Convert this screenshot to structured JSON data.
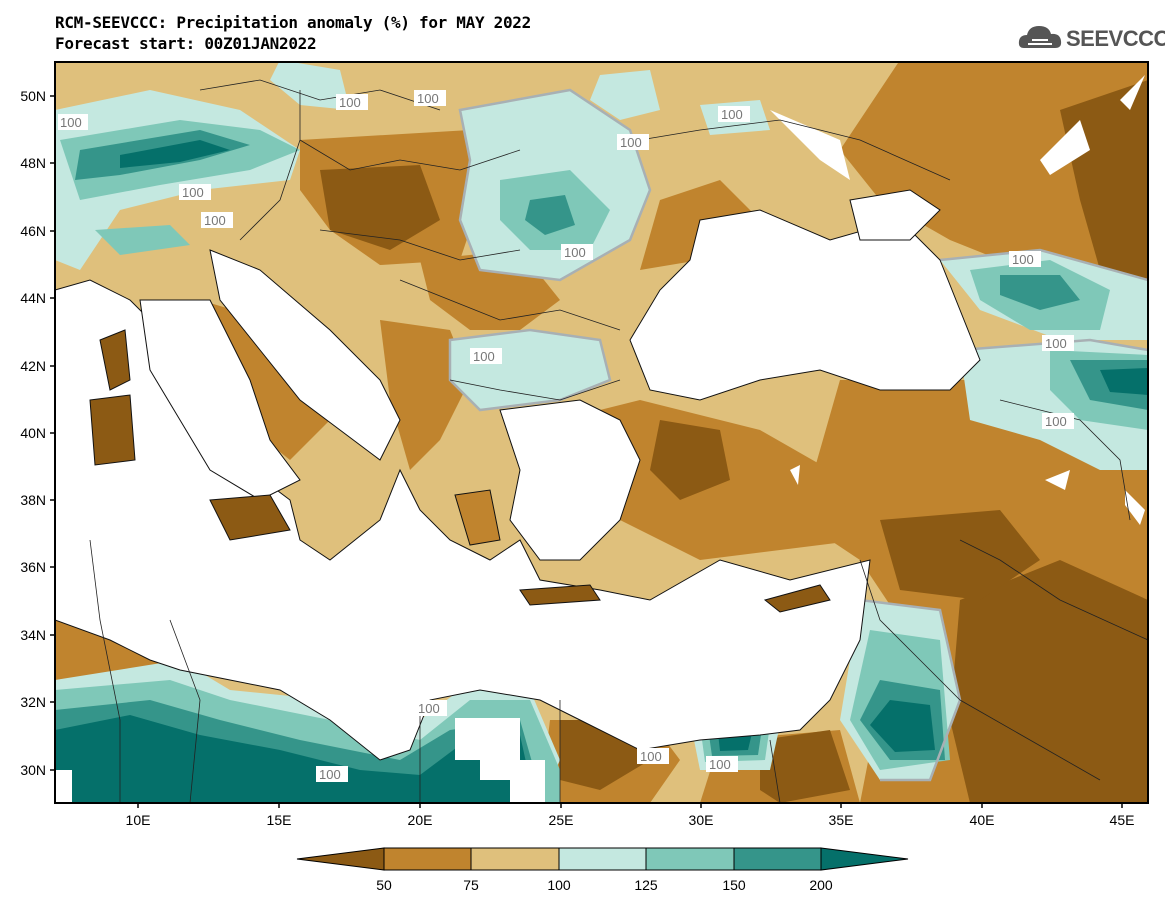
{
  "header": {
    "title_line1": "RCM-SEEVCCC: Precipitation anomaly (%) for MAY 2022",
    "title_line2": "Forecast start: 00Z01JAN2022",
    "logo_text": "SEEVCCC"
  },
  "axes": {
    "lat_labels": [
      "50N",
      "48N",
      "46N",
      "44N",
      "42N",
      "40N",
      "38N",
      "36N",
      "34N",
      "32N",
      "30N"
    ],
    "lon_labels": [
      "10E",
      "15E",
      "20E",
      "25E",
      "30E",
      "35E",
      "40E",
      "45E"
    ]
  },
  "contour_labels": [
    "100",
    "100",
    "100",
    "100",
    "100",
    "100",
    "100",
    "100",
    "100",
    "100",
    "100",
    "100",
    "100",
    "100",
    "100",
    "100"
  ],
  "colorbar": {
    "tick_labels": [
      "50",
      "75",
      "100",
      "125",
      "150",
      "200"
    ],
    "colors": [
      "#8c5a14",
      "#c0842e",
      "#dfc07c",
      "#c4e8e0",
      "#7fc8b8",
      "#35958a",
      "#05706a"
    ]
  },
  "palette": {
    "land_dark_brown": "#8c5a14",
    "land_brown": "#c0842e",
    "land_tan": "#dfc07c",
    "teal_light": "#c4e8e0",
    "teal_mid": "#7fc8b8",
    "teal_dark": "#35958a",
    "teal_darkest": "#05706a",
    "sea": "#ffffff"
  }
}
